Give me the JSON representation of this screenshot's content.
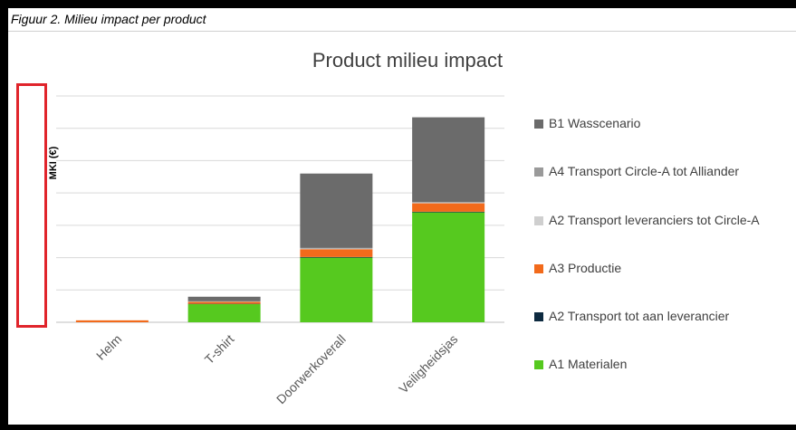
{
  "caption": "Figuur 2. Milieu impact per product",
  "chart_data": {
    "type": "bar",
    "stacked": true,
    "title": "Product milieu impact",
    "ylabel": "MKI (€)",
    "xlabel": "",
    "ylim": [
      0,
      35
    ],
    "grid": true,
    "legend_position": "right",
    "categories": [
      "Helm",
      "T-shirt",
      "Doorwerkoverall",
      "Veiligheidsjas"
    ],
    "series": [
      {
        "name": "A1 Materialen",
        "color": "#56c91f",
        "values": [
          0.0,
          2.8,
          10.0,
          17.0
        ]
      },
      {
        "name": "A2 Transport tot aan leverancier",
        "color": "#0d2a40",
        "values": [
          0.0,
          0.05,
          0.1,
          0.1
        ]
      },
      {
        "name": "A3 Productie",
        "color": "#f26a1b",
        "values": [
          0.3,
          0.3,
          1.2,
          1.3
        ]
      },
      {
        "name": "A2 Transport leveranciers tot Circle-A",
        "color": "#cfcfcf",
        "values": [
          0.0,
          0.05,
          0.1,
          0.1
        ]
      },
      {
        "name": "A4 Transport Circle-A tot Alliander",
        "color": "#9a9a9a",
        "values": [
          0.0,
          0.05,
          0.1,
          0.1
        ]
      },
      {
        "name": "B1 Wasscenario",
        "color": "#6b6b6b",
        "values": [
          0.0,
          0.7,
          11.5,
          13.1
        ]
      }
    ],
    "legend_order": [
      "B1 Wasscenario",
      "A4 Transport Circle-A tot Alliander",
      "A2 Transport leveranciers tot Circle-A",
      "A3 Productie",
      "A2 Transport tot aan leverancier",
      "A1 Materialen"
    ]
  }
}
